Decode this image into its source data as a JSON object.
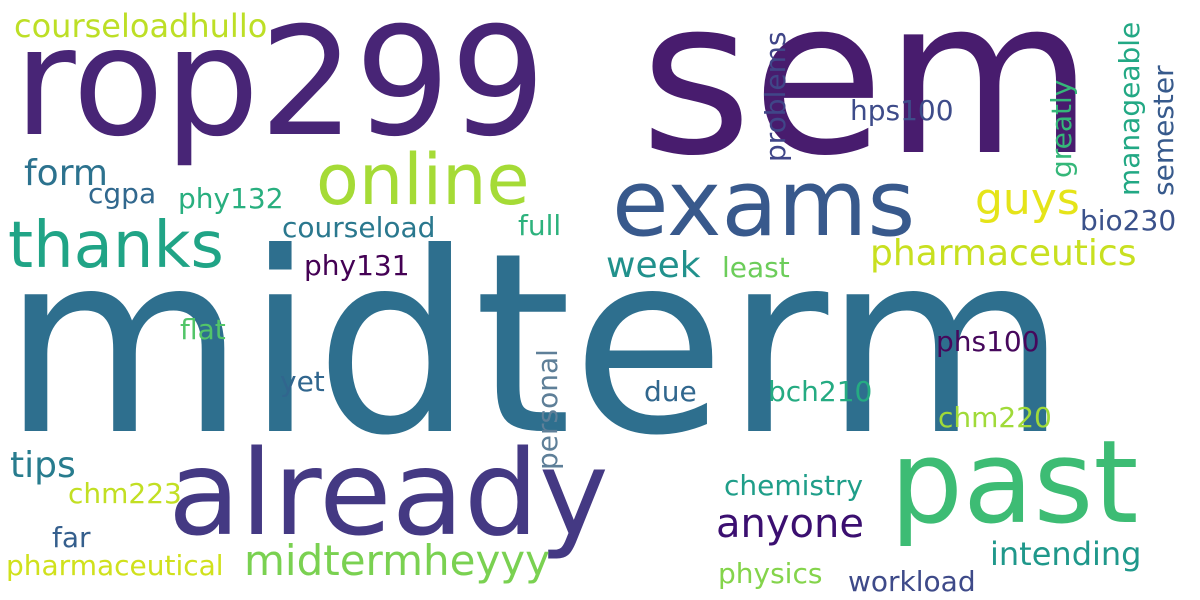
{
  "words": [
    {
      "text": "midterm",
      "color": "#2e6f8e"
    },
    {
      "text": "sem",
      "color": "#481c6e"
    },
    {
      "text": "rop299",
      "color": "#482576"
    },
    {
      "text": "already",
      "color": "#443983"
    },
    {
      "text": "past",
      "color": "#3dbc74"
    },
    {
      "text": "exams",
      "color": "#38598c"
    },
    {
      "text": "online",
      "color": "#a5db36"
    },
    {
      "text": "thanks",
      "color": "#20a486"
    },
    {
      "text": "midtermheyyy",
      "color": "#7ad151"
    },
    {
      "text": "anyone",
      "color": "#3b0f70"
    },
    {
      "text": "pharmaceutics",
      "color": "#c8e020"
    },
    {
      "text": "guys",
      "color": "#e5e419"
    },
    {
      "text": "intending",
      "color": "#1f988b"
    },
    {
      "text": "courseloadhullo",
      "color": "#bddf26"
    },
    {
      "text": "pharmaceutical",
      "color": "#d0e11c"
    },
    {
      "text": "week",
      "color": "#21918c"
    },
    {
      "text": "form",
      "color": "#2c728e"
    },
    {
      "text": "tips",
      "color": "#287c8e"
    },
    {
      "text": "courseload",
      "color": "#2a788e"
    },
    {
      "text": "workload",
      "color": "#3e4a89"
    },
    {
      "text": "chemistry",
      "color": "#1f9e89"
    },
    {
      "text": "physics",
      "color": "#84d44b"
    },
    {
      "text": "chm223",
      "color": "#c2df23"
    },
    {
      "text": "phy132",
      "color": "#29af7f"
    },
    {
      "text": "phy131",
      "color": "#440154"
    },
    {
      "text": "phs100",
      "color": "#46085c"
    },
    {
      "text": "hps100",
      "color": "#3e4c8a"
    },
    {
      "text": "bio230",
      "color": "#3b528b"
    },
    {
      "text": "bch210",
      "color": "#25ab82"
    },
    {
      "text": "chm220",
      "color": "#a0da39"
    },
    {
      "text": "cgpa",
      "color": "#31688e"
    },
    {
      "text": "full",
      "color": "#2db27d"
    },
    {
      "text": "least",
      "color": "#6ccd5a"
    },
    {
      "text": "flat",
      "color": "#52c569"
    },
    {
      "text": "yet",
      "color": "#31668e"
    },
    {
      "text": "due",
      "color": "#31678e"
    },
    {
      "text": "far",
      "color": "#355f8d"
    },
    {
      "text": "problems",
      "color": "#404688"
    },
    {
      "text": "personal",
      "color": "#5e7f98"
    },
    {
      "text": "greatly",
      "color": "#35b779"
    },
    {
      "text": "manageable",
      "color": "#22a884"
    },
    {
      "text": "semester",
      "color": "#375a8c"
    }
  ]
}
